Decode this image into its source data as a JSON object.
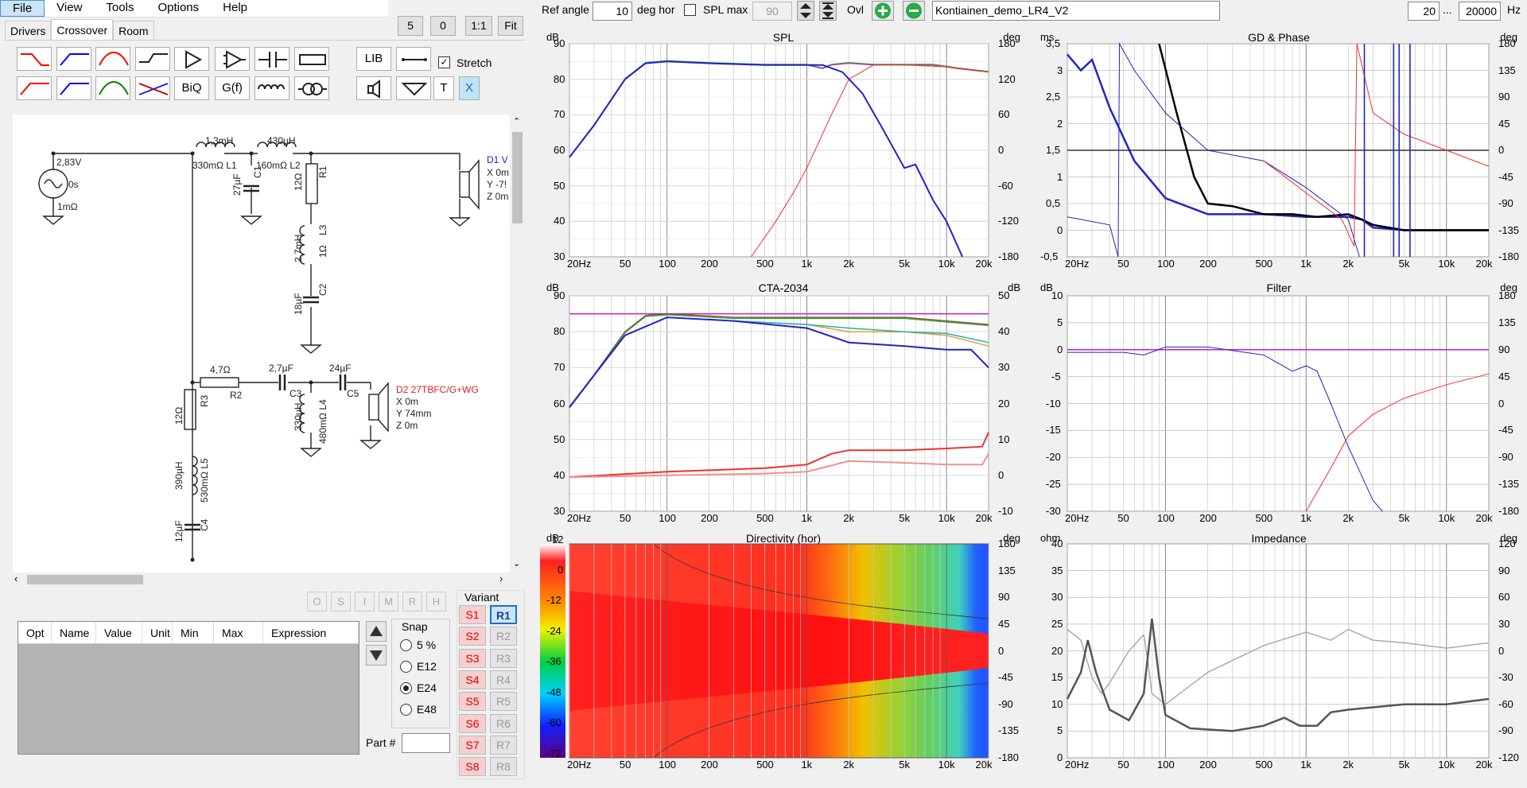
{
  "menu": {
    "file": "File",
    "view": "View",
    "tools": "Tools",
    "options": "Options",
    "help": "Help"
  },
  "toolbar_left": {
    "b5": "5",
    "b0": "0",
    "b11": "1:1",
    "fit": "Fit"
  },
  "tabs": {
    "drivers": "Drivers",
    "crossover": "Crossover",
    "room": "Room"
  },
  "top": {
    "ref_angle_label": "Ref angle",
    "ref_angle_value": "10",
    "deg_hor": "deg hor",
    "spl_max_label": "SPL max",
    "spl_max_value": "90",
    "ovl": "Ovl",
    "project_name": "Kontiainen_demo_LR4_V2",
    "freq_min": "20",
    "freq_ellipsis": "...",
    "freq_max": "20000",
    "hz": "Hz"
  },
  "tools": {
    "lib": "LIB",
    "biq": "BiQ",
    "gf": "G(f)",
    "t": "T",
    "x": "X",
    "stretch": "Stretch"
  },
  "circuit": {
    "src_v": "2,83V",
    "src_t": "0s",
    "src_r": "1mΩ",
    "l1_val": "1,3mH",
    "l1_name": "330mΩ L1",
    "l2_val": "430µH",
    "l2_name": "160mΩ L2",
    "c1_val": "27µF",
    "c1_name": "C1",
    "r1_val": "12Ω",
    "r1_name": "R1",
    "l3_val": "2,7mH",
    "l3_r": "1Ω",
    "l3_name": "L3",
    "c2_val": "18µF",
    "c2_name": "C2",
    "d1_name": "D1 V",
    "d1_x": "X 0m",
    "d1_y": "Y -7!",
    "d1_z": "Z 0m",
    "r2_val": "4,7Ω",
    "r2_name": "R2",
    "c3_val": "2,7µF",
    "c3_name": "C3",
    "c5_val": "24µF",
    "c5_name": "C5",
    "l4_val": "330µH",
    "l4_r": "480mΩ L4",
    "r3_val": "12Ω",
    "r3_name": "R3",
    "l5_val": "390µH",
    "l5_r": "530mΩ L5",
    "c4_val": "12µF",
    "c4_name": "C4",
    "d2_name": "D2 27TBFC/G+WG",
    "d2_x": "X 0m",
    "d2_y": "Y 74mm",
    "d2_z": "Z 0m"
  },
  "params": {
    "opt": "Opt",
    "name": "Name",
    "value": "Value",
    "unit": "Unit",
    "min": "Min",
    "max": "Max",
    "expr": "Expression",
    "part": "Part #"
  },
  "greybtns": [
    "O",
    "S",
    "I",
    "M",
    "R",
    "H"
  ],
  "snap": {
    "title": "Snap",
    "opts": [
      "5 %",
      "E12",
      "E24",
      "E48"
    ],
    "selected": "E24"
  },
  "variant": {
    "title": "Variant",
    "s": [
      "S1",
      "S2",
      "S3",
      "S4",
      "S5",
      "S6",
      "S7",
      "S8"
    ],
    "r": [
      "R1",
      "R2",
      "R3",
      "R4",
      "R5",
      "R6",
      "R7",
      "R8"
    ]
  },
  "xticks": [
    "20Hz",
    "50",
    "100",
    "200",
    "500",
    "1k",
    "2k",
    "5k",
    "10k",
    "20k"
  ],
  "plots": {
    "spl": {
      "title": "SPL",
      "lunit": "dB",
      "runit": "deg",
      "left": [
        "90",
        "80",
        "70",
        "60",
        "50",
        "40",
        "30"
      ],
      "right": [
        "180",
        "120",
        "60",
        "0",
        "-60",
        "-120",
        "-180"
      ]
    },
    "gd": {
      "title": "GD & Phase",
      "lunit": "ms",
      "runit": "deg",
      "left": [
        "3,5",
        "3",
        "2,5",
        "2",
        "1,5",
        "1",
        "0,5",
        "0",
        "-0,5"
      ],
      "right": [
        "180",
        "135",
        "90",
        "45",
        "0",
        "-45",
        "-90",
        "-135",
        "-180"
      ]
    },
    "cta": {
      "title": "CTA-2034",
      "lunit": "dB",
      "runit": "dB",
      "left": [
        "90",
        "80",
        "70",
        "60",
        "50",
        "40",
        "30"
      ],
      "right": [
        "50",
        "40",
        "30",
        "20",
        "10",
        "0",
        "-10"
      ]
    },
    "filter": {
      "title": "Filter",
      "lunit": "dB",
      "runit": "deg",
      "left": [
        "10",
        "5",
        "0",
        "-5",
        "-10",
        "-15",
        "-20",
        "-25",
        "-30"
      ],
      "right": [
        "180",
        "135",
        "90",
        "45",
        "0",
        "-45",
        "-90",
        "-135",
        "-180"
      ]
    },
    "dir": {
      "title": "Directivity (hor)",
      "lunit": "dB",
      "runit": "deg",
      "scale": [
        "12",
        "0",
        "-12",
        "-24",
        "-36",
        "-48",
        "-60",
        "-72"
      ],
      "right": [
        "180",
        "135",
        "90",
        "45",
        "0",
        "-45",
        "-90",
        "-135",
        "-180"
      ]
    },
    "imp": {
      "title": "Impedance",
      "lunit": "ohm",
      "runit": "deg",
      "left": [
        "40",
        "35",
        "30",
        "25",
        "20",
        "15",
        "10",
        "5",
        "0"
      ],
      "right": [
        "120",
        "90",
        "60",
        "30",
        "0",
        "-30",
        "-60",
        "-90",
        "-120"
      ]
    }
  },
  "colors": {
    "bluecurve": "#2323c8",
    "red": "#f03030",
    "green": "#3a9a3a",
    "magenta": "#c020c0",
    "grid": "#999999"
  }
}
